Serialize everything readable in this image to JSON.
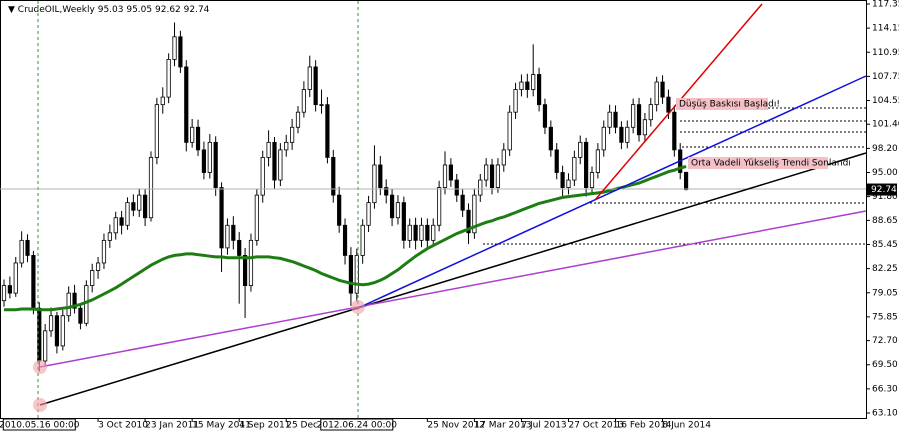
{
  "chart_data": {
    "type": "candlestick",
    "title": "CrudeOIL,Weekly",
    "categories": [
      null,
      null,
      null,
      null,
      null,
      null,
      "2010.05.16 00:00",
      null,
      null,
      null,
      null,
      null,
      null,
      null,
      null,
      null,
      "3 Oct 2010",
      null,
      null,
      null,
      null,
      null,
      null,
      null,
      "23 Jan 2011",
      null,
      null,
      null,
      null,
      null,
      null,
      null,
      "15 May 2011",
      null,
      null,
      null,
      null,
      null,
      null,
      null,
      "4 Sep 2011",
      null,
      null,
      null,
      null,
      null,
      null,
      null,
      "25 Dec 2011",
      null,
      null,
      null,
      null,
      null,
      null,
      null,
      null,
      null,
      null,
      null,
      "2012.06.24 00:00",
      null,
      null,
      null,
      null,
      null,
      null,
      null,
      null,
      null,
      null,
      null,
      "25 Nov 2012",
      null,
      null,
      null,
      null,
      null,
      null,
      null,
      "17 Mar 2013",
      null,
      null,
      null,
      null,
      null,
      null,
      null,
      "7 Jul 2013",
      null,
      null,
      null,
      null,
      null,
      null,
      null,
      "27 Oct 2013",
      null,
      null,
      null,
      null,
      null,
      null,
      null,
      "16 Feb 2014",
      null,
      null,
      null,
      null,
      null,
      null,
      null,
      "8 Jun 2014",
      null,
      null,
      null,
      null
    ],
    "ohlc": [
      [
        78,
        80.8,
        77.2,
        80
      ],
      [
        80,
        81.2,
        78.3,
        79
      ],
      [
        79,
        83.8,
        78.5,
        83
      ],
      [
        83,
        87.2,
        82.4,
        86
      ],
      [
        86,
        86.8,
        83.1,
        84
      ],
      [
        84,
        84.6,
        76.2,
        77
      ],
      [
        77,
        77.8,
        68.6,
        70
      ],
      [
        70,
        74.9,
        69.3,
        74
      ],
      [
        74,
        77.1,
        73.2,
        76
      ],
      [
        76,
        76.5,
        71.0,
        72
      ],
      [
        72,
        76.8,
        71.4,
        76
      ],
      [
        76,
        79.9,
        75.2,
        79
      ],
      [
        79,
        80.1,
        76.3,
        77
      ],
      [
        77,
        77.6,
        74.2,
        75
      ],
      [
        75,
        80.7,
        74.6,
        80
      ],
      [
        80,
        82.9,
        79.1,
        82
      ],
      [
        82,
        83.8,
        80.9,
        83
      ],
      [
        83,
        86.9,
        82.2,
        86
      ],
      [
        86,
        88.1,
        85.0,
        87
      ],
      [
        87,
        89.8,
        86.1,
        89
      ],
      [
        89,
        89.9,
        86.8,
        88
      ],
      [
        88,
        91.7,
        87.4,
        91
      ],
      [
        91,
        92.1,
        89.2,
        90
      ],
      [
        90,
        92.9,
        89.1,
        92
      ],
      [
        92,
        92.8,
        87.9,
        89
      ],
      [
        89,
        97.8,
        88.5,
        97
      ],
      [
        97,
        104.9,
        96.1,
        104
      ],
      [
        104,
        106.3,
        102.8,
        105
      ],
      [
        105,
        110.8,
        104.2,
        110
      ],
      [
        110,
        114.9,
        109.1,
        113
      ],
      [
        113,
        113.8,
        108.2,
        109
      ],
      [
        109,
        109.9,
        97.8,
        99
      ],
      [
        99,
        102.1,
        98.3,
        101
      ],
      [
        101,
        102.0,
        97.2,
        98
      ],
      [
        98,
        99.1,
        94.1,
        95
      ],
      [
        95,
        100.1,
        94.2,
        99
      ],
      [
        99,
        99.8,
        91.9,
        93
      ],
      [
        93,
        93.7,
        81.8,
        85
      ],
      [
        85,
        88.9,
        84.1,
        88
      ],
      [
        88,
        89.2,
        84.8,
        86
      ],
      [
        86,
        87.1,
        77.6,
        84
      ],
      [
        84,
        85.0,
        75.7,
        80
      ],
      [
        80,
        86.9,
        79.2,
        86
      ],
      [
        86,
        92.8,
        85.3,
        92
      ],
      [
        92,
        97.9,
        91.0,
        97
      ],
      [
        97,
        100.6,
        95.8,
        99
      ],
      [
        99,
        99.7,
        92.8,
        94
      ],
      [
        94,
        98.9,
        93.2,
        98
      ],
      [
        98,
        100.0,
        97.1,
        99
      ],
      [
        99,
        102.1,
        98.0,
        101
      ],
      [
        101,
        103.8,
        100.2,
        103
      ],
      [
        103,
        107.1,
        102.3,
        106
      ],
      [
        106,
        110.5,
        105.0,
        109
      ],
      [
        109,
        109.9,
        103.1,
        104
      ],
      [
        104,
        106.0,
        102.8,
        104
      ],
      [
        104,
        105.0,
        96.2,
        97
      ],
      [
        97,
        98.0,
        91.0,
        92
      ],
      [
        92,
        93.1,
        87.0,
        88
      ],
      [
        88,
        88.9,
        82.8,
        84
      ],
      [
        84,
        85.1,
        77.3,
        79
      ],
      [
        79,
        84.9,
        77.9,
        84
      ],
      [
        84,
        88.8,
        82.9,
        88
      ],
      [
        88,
        91.9,
        87.1,
        91
      ],
      [
        91,
        98.6,
        90.2,
        96
      ],
      [
        96,
        97.2,
        92.0,
        93
      ],
      [
        93,
        94.1,
        90.9,
        92
      ],
      [
        92,
        92.8,
        87.9,
        89
      ],
      [
        89,
        92.0,
        88.1,
        91
      ],
      [
        91,
        91.8,
        84.9,
        86
      ],
      [
        86,
        88.9,
        85.0,
        88
      ],
      [
        88,
        89.0,
        84.8,
        86
      ],
      [
        86,
        89.0,
        85.1,
        88
      ],
      [
        88,
        88.9,
        84.9,
        86
      ],
      [
        86,
        88.9,
        85.1,
        88
      ],
      [
        88,
        93.9,
        87.2,
        93
      ],
      [
        93,
        97.8,
        92.1,
        96
      ],
      [
        96,
        96.9,
        93.1,
        94
      ],
      [
        94,
        94.8,
        91.1,
        92
      ],
      [
        92,
        92.8,
        89.1,
        90
      ],
      [
        90,
        90.9,
        85.5,
        87
      ],
      [
        87,
        92.9,
        86.2,
        92
      ],
      [
        92,
        94.8,
        91.1,
        94
      ],
      [
        94,
        96.9,
        93.1,
        96
      ],
      [
        96,
        96.8,
        92.1,
        93
      ],
      [
        93,
        96.9,
        92.3,
        96
      ],
      [
        96,
        98.9,
        95.1,
        98
      ],
      [
        98,
        103.9,
        97.2,
        103
      ],
      [
        103,
        106.9,
        102.1,
        106
      ],
      [
        106,
        108.0,
        105.1,
        107
      ],
      [
        107,
        108.1,
        104.9,
        106
      ],
      [
        106,
        112.0,
        105.1,
        108
      ],
      [
        108,
        108.9,
        103.1,
        104
      ],
      [
        104,
        104.8,
        100.1,
        101
      ],
      [
        101,
        101.9,
        97.1,
        98
      ],
      [
        98,
        98.9,
        94.1,
        95
      ],
      [
        95,
        95.9,
        91.8,
        93
      ],
      [
        93,
        94.9,
        92.1,
        94
      ],
      [
        94,
        97.9,
        93.2,
        97
      ],
      [
        97,
        99.9,
        96.1,
        99
      ],
      [
        99,
        99.6,
        91.8,
        93
      ],
      [
        93,
        95.8,
        92.1,
        95
      ],
      [
        95,
        98.9,
        94.2,
        98
      ],
      [
        98,
        101.9,
        97.1,
        101
      ],
      [
        101,
        104.0,
        100.1,
        103
      ],
      [
        103,
        103.9,
        100.2,
        101
      ],
      [
        101,
        101.8,
        98.1,
        99
      ],
      [
        99,
        101.9,
        98.2,
        101
      ],
      [
        101,
        104.8,
        100.2,
        104
      ],
      [
        104,
        104.9,
        99.1,
        100
      ],
      [
        100,
        102.9,
        99.2,
        102
      ],
      [
        102,
        104.9,
        101.1,
        104
      ],
      [
        104,
        107.7,
        103.1,
        107
      ],
      [
        107,
        107.9,
        104.1,
        105
      ],
      [
        105,
        106.0,
        102.1,
        103
      ],
      [
        103,
        103.9,
        97.1,
        98
      ],
      [
        98,
        98.9,
        94.1,
        95
      ],
      [
        95.03,
        95.05,
        92.62,
        92.74
      ]
    ],
    "ma": {
      "color": "#1e7d12",
      "values": [
        76.8,
        76.8,
        76.8,
        76.9,
        76.9,
        76.9,
        76.8,
        76.8,
        76.8,
        76.9,
        77.0,
        77.1,
        77.3,
        77.5,
        77.8,
        78.1,
        78.5,
        78.9,
        79.3,
        79.7,
        80.2,
        80.7,
        81.2,
        81.7,
        82.2,
        82.7,
        83.1,
        83.5,
        83.8,
        84.0,
        84.1,
        84.2,
        84.2,
        84.1,
        84.0,
        83.9,
        83.8,
        83.8,
        83.7,
        83.7,
        83.7,
        83.7,
        83.7,
        83.8,
        83.8,
        83.8,
        83.7,
        83.6,
        83.4,
        83.2,
        82.9,
        82.6,
        82.3,
        82.0,
        81.6,
        81.3,
        81.0,
        80.7,
        80.5,
        80.3,
        80.2,
        80.1,
        80.2,
        80.4,
        80.7,
        81.1,
        81.6,
        82.1,
        82.7,
        83.3,
        83.9,
        84.4,
        84.9,
        85.3,
        85.7,
        86.1,
        86.5,
        86.9,
        87.2,
        87.5,
        87.8,
        88.1,
        88.4,
        88.6,
        88.9,
        89.1,
        89.4,
        89.7,
        90.0,
        90.3,
        90.6,
        90.9,
        91.1,
        91.3,
        91.5,
        91.7,
        91.8,
        91.9,
        92.0,
        92.1,
        92.2,
        92.3,
        92.4,
        92.6,
        92.8,
        93.0,
        93.2,
        93.4,
        93.6,
        93.9,
        94.2,
        94.5,
        94.8,
        95.1,
        95.3,
        95.6,
        95.8
      ]
    },
    "ylim": [
      63.1,
      117.35
    ],
    "yticks": [
      {
        "value": 63.1,
        "label": "63.10"
      },
      {
        "value": 66.3,
        "label": "66.30"
      },
      {
        "value": 69.5,
        "label": "69.50"
      },
      {
        "value": 72.7,
        "label": "72.70"
      },
      75.85,
      79.05,
      82.25,
      85.45,
      88.65,
      {
        "value": 91.8,
        "label": "91.80"
      },
      {
        "value": 95,
        "label": "95.00"
      },
      {
        "value": 98.2,
        "label": "98.20"
      },
      {
        "value": 101.4,
        "label": "101.40"
      },
      104.55,
      107.75,
      110.95,
      114.15,
      117.35
    ],
    "annotations": [
      "Düşüş Baskısı Başladı!",
      "Orta Vadeli Yükseliş Trendi Sonlandı"
    ]
  }
}
